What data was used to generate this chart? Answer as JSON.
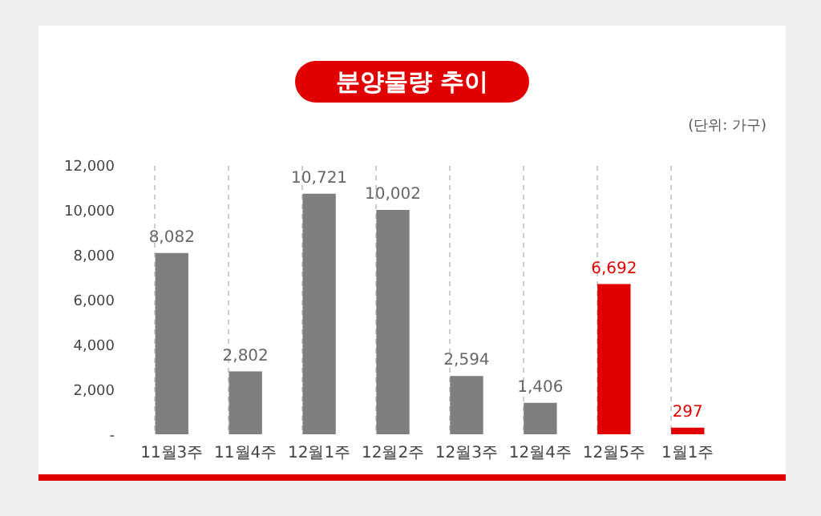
{
  "chart_data": {
    "type": "bar",
    "title": "분양물량 추이",
    "annotations": [
      "(단위: 가구)"
    ],
    "categories": [
      "11월3주",
      "11월4주",
      "12월1주",
      "12월2주",
      "12월3주",
      "12월4주",
      "12월5주",
      "1월1주"
    ],
    "values": [
      8082,
      2802,
      10721,
      10002,
      2594,
      1406,
      6692,
      297
    ],
    "value_labels": [
      "8,082",
      "2,802",
      "10,721",
      "10,002",
      "2,594",
      "1,406",
      "6,692",
      "297"
    ],
    "colors": [
      "#7f7f7f",
      "#7f7f7f",
      "#7f7f7f",
      "#7f7f7f",
      "#7f7f7f",
      "#7f7f7f",
      "#e00000",
      "#e00000"
    ],
    "ylim": [
      0,
      12000
    ],
    "yticks": [
      {
        "value": 0,
        "label": "-"
      },
      {
        "value": 2000,
        "label": "2,000"
      },
      {
        "value": 4000,
        "label": "4,000"
      },
      {
        "value": 6000,
        "label": "6,000"
      },
      {
        "value": 8000,
        "label": "8,000"
      },
      {
        "value": 10000,
        "label": "10,000"
      },
      {
        "value": 12000,
        "label": "12,000"
      }
    ],
    "grid": "x"
  }
}
